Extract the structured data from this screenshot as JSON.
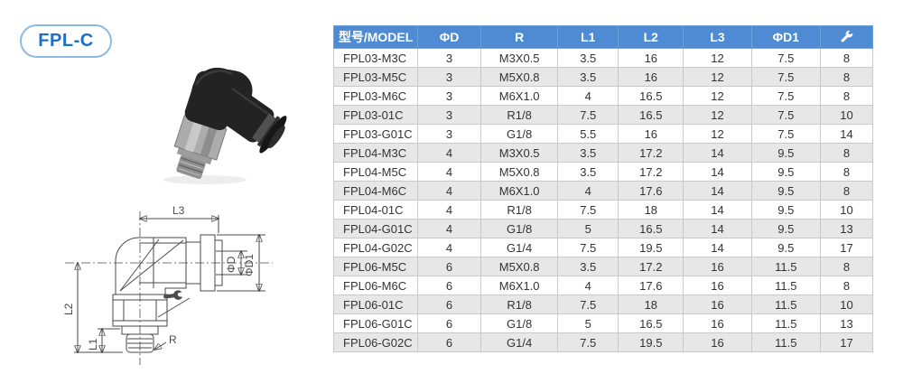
{
  "colors": {
    "header_bg": "#4e8bd2",
    "header_text": "#ffffff",
    "row": "#ffffff",
    "row_alt": "#e7e7e7",
    "line": "#c9c9c9",
    "body_text": "#333333",
    "badge_text": "#1d6fc0",
    "badge_border": "#8abbe6",
    "drawing_line": "#4a4a4a"
  },
  "badge": {
    "label": "FPL-C"
  },
  "drawing": {
    "labels": {
      "l3": "L3",
      "d": "ΦD",
      "d1": "ΦD1",
      "l2": "L2",
      "l1": "L1",
      "r": "R"
    }
  },
  "table": {
    "columns": [
      {
        "key": "model",
        "label": "型号/MODEL"
      },
      {
        "key": "d",
        "label": "ΦD"
      },
      {
        "key": "r",
        "label": "R"
      },
      {
        "key": "l1",
        "label": "L1"
      },
      {
        "key": "l2",
        "label": "L2"
      },
      {
        "key": "l3",
        "label": "L3"
      },
      {
        "key": "d1",
        "label": "ΦD1"
      },
      {
        "key": "wrench",
        "label": "",
        "icon": "wrench-icon"
      }
    ],
    "rows": [
      [
        "FPL03-M3C",
        "3",
        "M3X0.5",
        "3.5",
        "16",
        "12",
        "7.5",
        "8"
      ],
      [
        "FPL03-M5C",
        "3",
        "M5X0.8",
        "3.5",
        "16",
        "12",
        "7.5",
        "8"
      ],
      [
        "FPL03-M6C",
        "3",
        "M6X1.0",
        "4",
        "16.5",
        "12",
        "7.5",
        "8"
      ],
      [
        "FPL03-01C",
        "3",
        "R1/8",
        "7.5",
        "16.5",
        "12",
        "7.5",
        "10"
      ],
      [
        "FPL03-G01C",
        "3",
        "G1/8",
        "5.5",
        "16",
        "12",
        "7.5",
        "14"
      ],
      [
        "FPL04-M3C",
        "4",
        "M3X0.5",
        "3.5",
        "17.2",
        "14",
        "9.5",
        "8"
      ],
      [
        "FPL04-M5C",
        "4",
        "M5X0.8",
        "3.5",
        "17.2",
        "14",
        "9.5",
        "8"
      ],
      [
        "FPL04-M6C",
        "4",
        "M6X1.0",
        "4",
        "17.6",
        "14",
        "9.5",
        "8"
      ],
      [
        "FPL04-01C",
        "4",
        "R1/8",
        "7.5",
        "18",
        "14",
        "9.5",
        "10"
      ],
      [
        "FPL04-G01C",
        "4",
        "G1/8",
        "5",
        "16.5",
        "14",
        "9.5",
        "13"
      ],
      [
        "FPL04-G02C",
        "4",
        "G1/4",
        "7.5",
        "19.5",
        "14",
        "9.5",
        "17"
      ],
      [
        "FPL06-M5C",
        "6",
        "M5X0.8",
        "3.5",
        "17.2",
        "16",
        "11.5",
        "8"
      ],
      [
        "FPL06-M6C",
        "6",
        "M6X1.0",
        "4",
        "17.6",
        "16",
        "11.5",
        "8"
      ],
      [
        "FPL06-01C",
        "6",
        "R1/8",
        "7.5",
        "18",
        "16",
        "11.5",
        "10"
      ],
      [
        "FPL06-G01C",
        "6",
        "G1/8",
        "5",
        "16.5",
        "16",
        "11.5",
        "13"
      ],
      [
        "FPL06-G02C",
        "6",
        "G1/4",
        "7.5",
        "19.5",
        "16",
        "11.5",
        "17"
      ]
    ]
  }
}
